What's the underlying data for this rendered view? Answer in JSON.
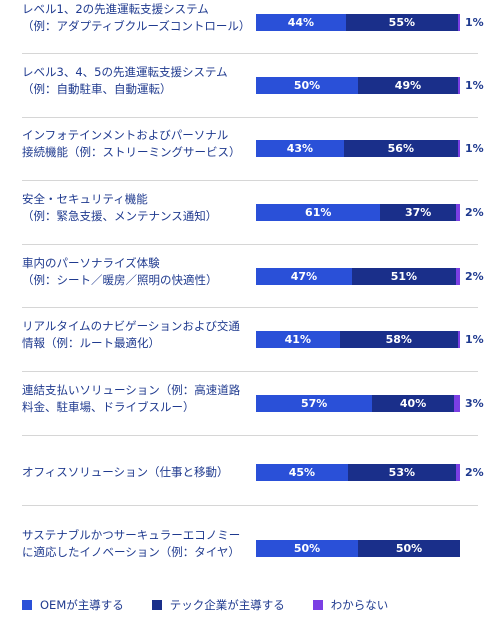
{
  "chart_data": {
    "type": "bar",
    "orientation": "horizontal",
    "stacked": true,
    "legend_position": "bottom",
    "grid": false,
    "xlim": [
      0,
      100
    ],
    "colors": {
      "oem": "#2a50d8",
      "tech": "#1a2f8a",
      "unknown": "#7b3fe4"
    },
    "series": [
      {
        "name": "OEMが主導する",
        "key": "oem"
      },
      {
        "name": "テック企業が主導する",
        "key": "tech"
      },
      {
        "name": "わからない",
        "key": "unknown"
      }
    ],
    "categories": [
      {
        "lines": [
          "レベル1、2の先進運転支援システム",
          "（例：アダプティブクルーズコントロール）"
        ],
        "oem": 44,
        "tech": 55,
        "unknown": 1,
        "oem_label": "44%",
        "tech_label": "55%",
        "unknown_label": "1%"
      },
      {
        "lines": [
          "レベル3、4、5の先進運転支援システム",
          "（例：自動駐車、自動運転）"
        ],
        "oem": 50,
        "tech": 49,
        "unknown": 1,
        "oem_label": "50%",
        "tech_label": "49%",
        "unknown_label": "1%"
      },
      {
        "lines": [
          "インフォテインメントおよびパーソナル",
          "接続機能（例：ストリーミングサービス）"
        ],
        "oem": 43,
        "tech": 56,
        "unknown": 1,
        "oem_label": "43%",
        "tech_label": "56%",
        "unknown_label": "1%"
      },
      {
        "lines": [
          "安全・セキュリティ機能",
          "（例：緊急支援、メンテナンス通知）"
        ],
        "oem": 61,
        "tech": 37,
        "unknown": 2,
        "oem_label": "61%",
        "tech_label": "37%",
        "unknown_label": "2%"
      },
      {
        "lines": [
          "車内のパーソナライズ体験",
          "（例：シート／暖房／照明の快適性）"
        ],
        "oem": 47,
        "tech": 51,
        "unknown": 2,
        "oem_label": "47%",
        "tech_label": "51%",
        "unknown_label": "2%"
      },
      {
        "lines": [
          "リアルタイムのナビゲーションおよび交通",
          "情報（例：ルート最適化）"
        ],
        "oem": 41,
        "tech": 58,
        "unknown": 1,
        "oem_label": "41%",
        "tech_label": "58%",
        "unknown_label": "1%"
      },
      {
        "lines": [
          "連結支払いソリューション（例：高速道路",
          "料金、駐車場、ドライブスルー）"
        ],
        "oem": 57,
        "tech": 40,
        "unknown": 3,
        "oem_label": "57%",
        "tech_label": "40%",
        "unknown_label": "3%"
      },
      {
        "lines": [
          "オフィスソリューション（仕事と移動）"
        ],
        "oem": 45,
        "tech": 53,
        "unknown": 2,
        "oem_label": "45%",
        "tech_label": "53%",
        "unknown_label": "2%"
      },
      {
        "lines": [
          "サステナブルかつサーキュラーエコノミー",
          "に適応したイノベーション（例：タイヤ）"
        ],
        "oem": 50,
        "tech": 50,
        "unknown": 0,
        "oem_label": "50%",
        "tech_label": "50%",
        "unknown_label": ""
      }
    ]
  }
}
